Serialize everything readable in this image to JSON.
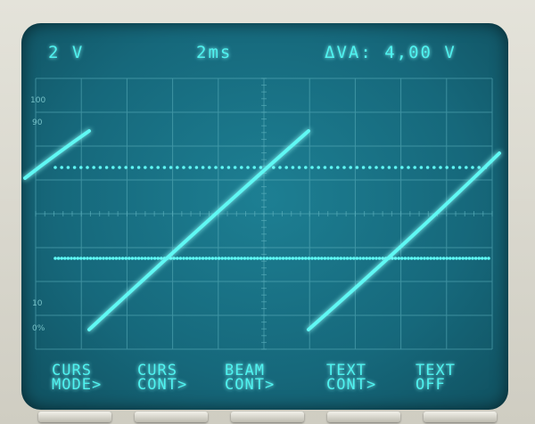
{
  "readouts": {
    "volts_div": "2 V",
    "time_div": "2ms",
    "delta_va": "ΔVA: 4,00 V"
  },
  "scale_marks": {
    "p100": "100",
    "p90": "90",
    "p10": "10",
    "p0": "0%"
  },
  "softkeys": [
    {
      "line1": "CURS",
      "line2": "MODE>"
    },
    {
      "line1": "CURS",
      "line2": "CONT>"
    },
    {
      "line1": "BEAM",
      "line2": "CONT>"
    },
    {
      "line1": "TEXT",
      "line2": "CONT>"
    },
    {
      "line1": "TEXT",
      "line2": "OFF"
    }
  ],
  "colors": {
    "trace": "#5ff8f4",
    "screen": "#16687b",
    "grid": "#5fb3bf"
  }
}
